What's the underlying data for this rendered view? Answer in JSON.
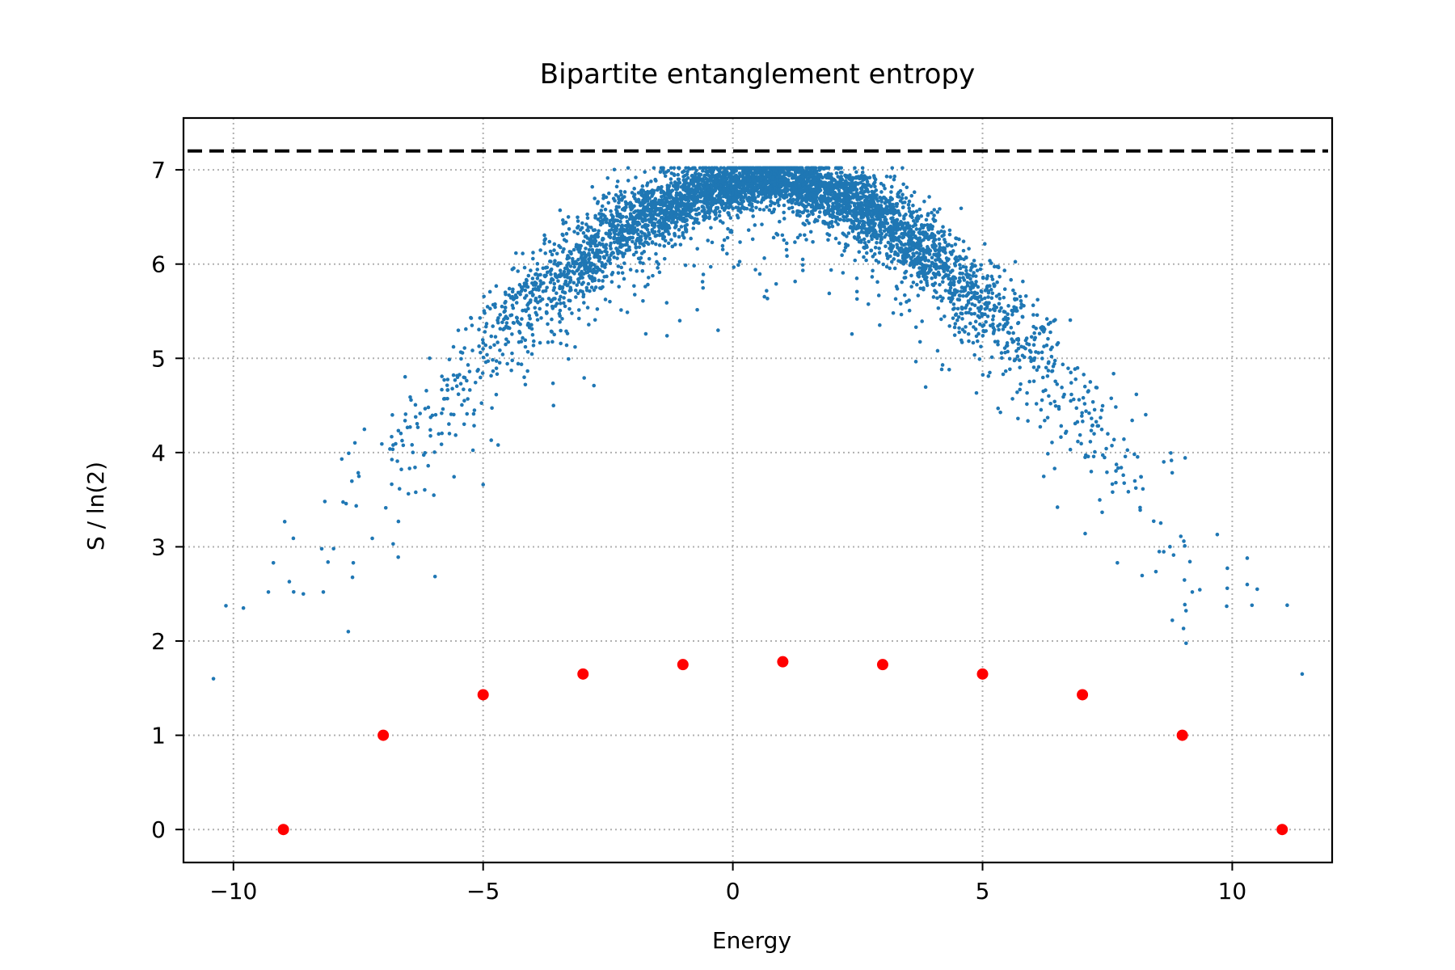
{
  "chart_data": {
    "type": "scatter",
    "title": "Bipartite entanglement entropy",
    "xlabel": "Energy",
    "ylabel": "S / ln(2)",
    "xlim": [
      -11,
      12
    ],
    "ylim": [
      -0.35,
      7.55
    ],
    "x_ticks": [
      -10,
      -5,
      0,
      5,
      10
    ],
    "y_ticks": [
      0,
      1,
      2,
      3,
      4,
      5,
      6,
      7
    ],
    "x_tick_labels": [
      "−10",
      "−5",
      "0",
      "5",
      "10"
    ],
    "y_tick_labels": [
      "0",
      "1",
      "2",
      "3",
      "4",
      "5",
      "6",
      "7"
    ],
    "grid": true,
    "grid_style": "dotted",
    "reference_line": {
      "y": 7.2,
      "style": "dashed",
      "color": "#000000"
    },
    "colors": {
      "dense": "#1f77b4",
      "special": "#ff0000",
      "reference": "#000000",
      "grid": "#b0b0b0"
    },
    "series": [
      {
        "marker": "small-dot",
        "color": "#1f77b4",
        "envelope": [
          [
            -10.4,
            1.6
          ],
          [
            -9.8,
            2.35
          ],
          [
            -9.3,
            2.5
          ],
          [
            -8.8,
            3.0
          ],
          [
            -8.0,
            3.3
          ],
          [
            -7.0,
            3.9
          ],
          [
            -6.0,
            4.45
          ],
          [
            -5.0,
            5.05
          ],
          [
            -4.0,
            5.65
          ],
          [
            -3.0,
            6.05
          ],
          [
            -2.0,
            6.45
          ],
          [
            -1.0,
            6.7
          ],
          [
            0.0,
            6.85
          ],
          [
            1.0,
            6.9
          ],
          [
            2.0,
            6.75
          ],
          [
            3.0,
            6.5
          ],
          [
            4.0,
            6.1
          ],
          [
            5.0,
            5.6
          ],
          [
            6.0,
            5.1
          ],
          [
            7.0,
            4.5
          ],
          [
            8.0,
            3.8
          ],
          [
            8.8,
            3.2
          ],
          [
            9.5,
            2.7
          ],
          [
            10.3,
            2.5
          ],
          [
            11.0,
            2.35
          ],
          [
            11.4,
            1.65
          ]
        ]
      },
      {
        "marker": "dot",
        "color": "#ff0000",
        "points": [
          [
            -9,
            0.0
          ],
          [
            -7,
            1.0
          ],
          [
            -5,
            1.43
          ],
          [
            -3,
            1.65
          ],
          [
            -1,
            1.75
          ],
          [
            1,
            1.78
          ],
          [
            3,
            1.75
          ],
          [
            5,
            1.65
          ],
          [
            7,
            1.43
          ],
          [
            9,
            1.0
          ],
          [
            11,
            0.0
          ]
        ]
      }
    ]
  }
}
